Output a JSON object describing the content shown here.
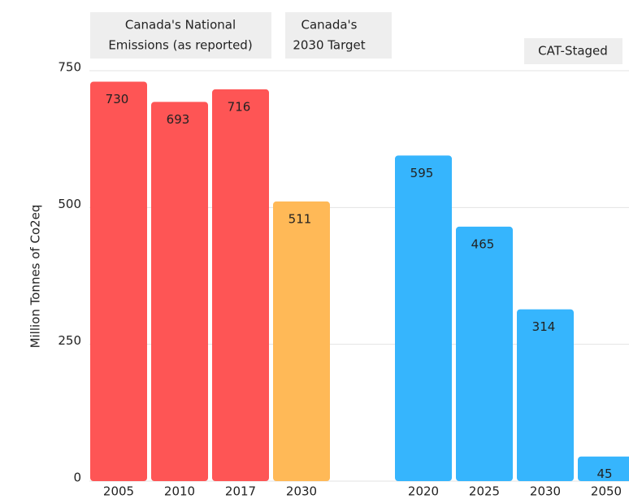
{
  "chart_data": {
    "type": "bar",
    "y_label": "Million Tonnes of Co2eq",
    "categories": [
      "2005",
      "2010",
      "2017",
      "2030",
      null,
      "2020",
      "2025",
      "2030",
      "2050"
    ],
    "values": [
      730,
      693,
      716,
      511,
      null,
      595,
      465,
      314,
      45
    ],
    "colors": [
      "#fe5555",
      "#fe5555",
      "#fe5555",
      "#ffb957",
      null,
      "#36b5fd",
      "#36b5fd",
      "#36b5fd",
      "#36b5fd"
    ],
    "ylim": [
      0,
      750
    ],
    "yticks": [
      0,
      250,
      500,
      750
    ],
    "grid": true,
    "annotations": [
      {
        "lines": [
          "Canada's National",
          "Emissions (as reported)"
        ]
      },
      {
        "lines": [
          "Canada's",
          "2030 Target"
        ]
      },
      {
        "lines": [
          "CAT-Staged"
        ]
      }
    ]
  }
}
